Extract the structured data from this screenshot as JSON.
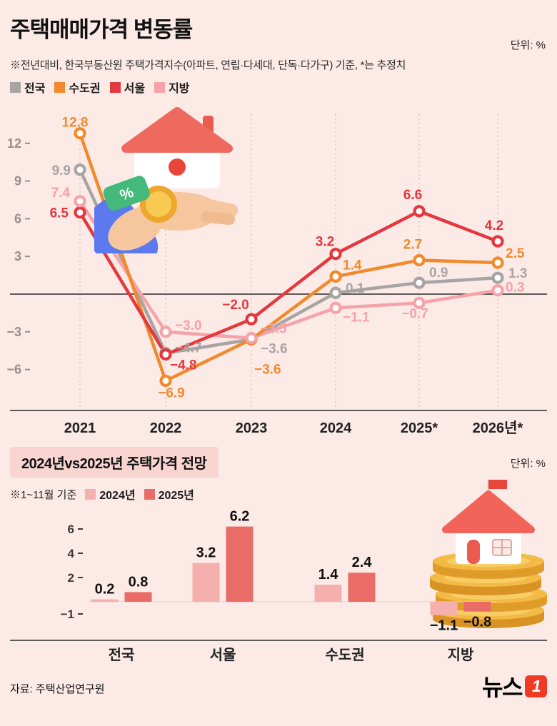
{
  "header": {
    "title": "주택매매가격 변동률",
    "unit": "단위: %",
    "note": "※전년대비, 한국부동산원 주택가격지수(아파트, 연립·다세대, 단독·다가구) 기준, *는 추정치"
  },
  "chart_data": [
    {
      "type": "line",
      "title": "주택매매가격 변동률",
      "ylabel": "%",
      "categories": [
        "2021",
        "2022",
        "2023",
        "2024",
        "2025*",
        "2026년*"
      ],
      "yticks": [
        12,
        9,
        6,
        3,
        -3,
        -6
      ],
      "ylim": [
        -8.5,
        14.5
      ],
      "grid": "dashed-vertical",
      "legend_position": "top-left",
      "series": [
        {
          "name": "전국",
          "color": "#a7a5a4",
          "values": [
            9.9,
            -4.7,
            -3.6,
            0.1,
            0.9,
            1.3
          ]
        },
        {
          "name": "수도권",
          "color": "#f08a2d",
          "values": [
            12.8,
            -6.9,
            -3.6,
            1.4,
            2.7,
            2.5
          ]
        },
        {
          "name": "서울",
          "color": "#e2383e",
          "values": [
            6.5,
            -4.8,
            -2.0,
            3.2,
            6.6,
            4.2
          ]
        },
        {
          "name": "지방",
          "color": "#f5a2a8",
          "values": [
            7.4,
            -3.0,
            -3.5,
            -1.1,
            -0.7,
            0.3
          ]
        }
      ]
    },
    {
      "type": "bar",
      "title": "2024년vs2025년 주택가격 전망",
      "unit": "단위: %",
      "note": "※1~11월 기준",
      "categories": [
        "전국",
        "서울",
        "수도권",
        "지방"
      ],
      "yticks": [
        6,
        4,
        2,
        -1
      ],
      "ylim": [
        -2,
        7
      ],
      "legend_position": "top-left",
      "series": [
        {
          "name": "2024년",
          "color": "#f5b0ad",
          "values": [
            0.2,
            3.2,
            1.4,
            -1.1
          ]
        },
        {
          "name": "2025년",
          "color": "#e96d66",
          "values": [
            0.8,
            6.2,
            2.4,
            -0.8
          ]
        }
      ]
    }
  ],
  "footer": {
    "source": "자료: 주택산업연구원",
    "logo_text": "뉴스",
    "logo_badge": "1",
    "logo_color": "#ef3b24"
  }
}
